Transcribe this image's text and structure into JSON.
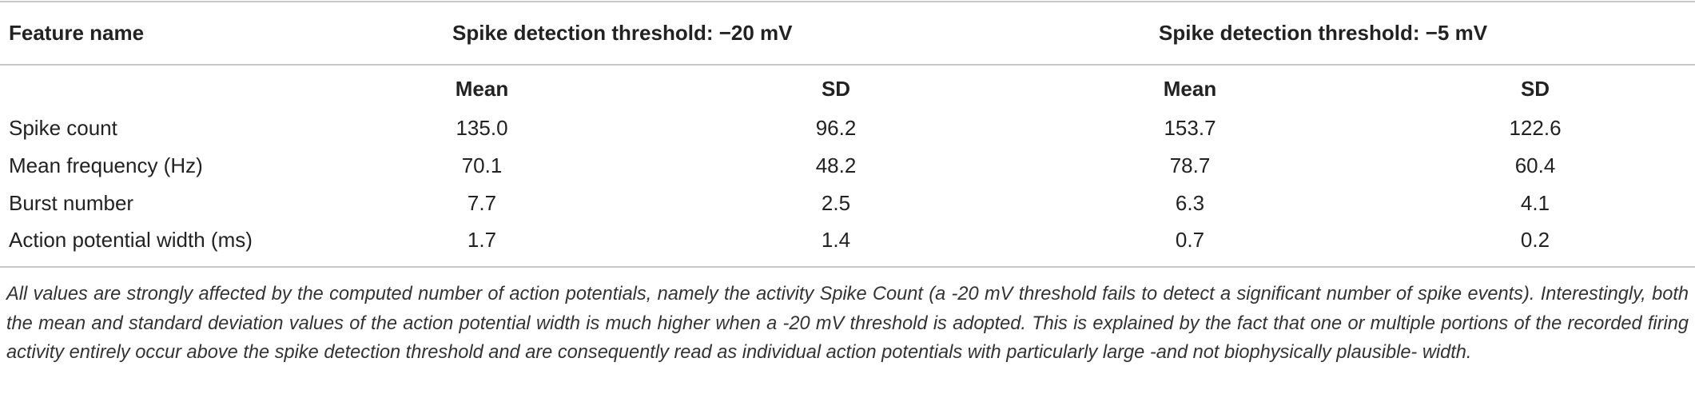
{
  "table": {
    "header": {
      "feature": "Feature name",
      "groups": [
        "Spike detection threshold: −20 mV",
        "Spike detection threshold: −5 mV"
      ]
    },
    "subheader": [
      "Mean",
      "SD",
      "Mean",
      "SD"
    ],
    "rows": [
      [
        "Spike count",
        "135.0",
        "96.2",
        "153.7",
        "122.6"
      ],
      [
        "Mean frequency (Hz)",
        "70.1",
        "48.2",
        "78.7",
        "60.4"
      ],
      [
        "Burst number",
        "7.7",
        "2.5",
        "6.3",
        "4.1"
      ],
      [
        "Action potential width (ms)",
        "1.7",
        "1.4",
        "0.7",
        "0.2"
      ]
    ]
  },
  "caption": "All values are strongly affected by the computed number of action potentials, namely the activity Spike Count (a -20 mV threshold fails to detect a significant number of spike events). Interestingly, both the mean and standard deviation values of the action potential width is much higher when a -20 mV threshold is adopted. This is explained by the fact that one or multiple portions of the recorded firing activity entirely occur above the spike detection threshold and are consequently read as individual action potentials with particularly large -and not biophysically plausible- width."
}
